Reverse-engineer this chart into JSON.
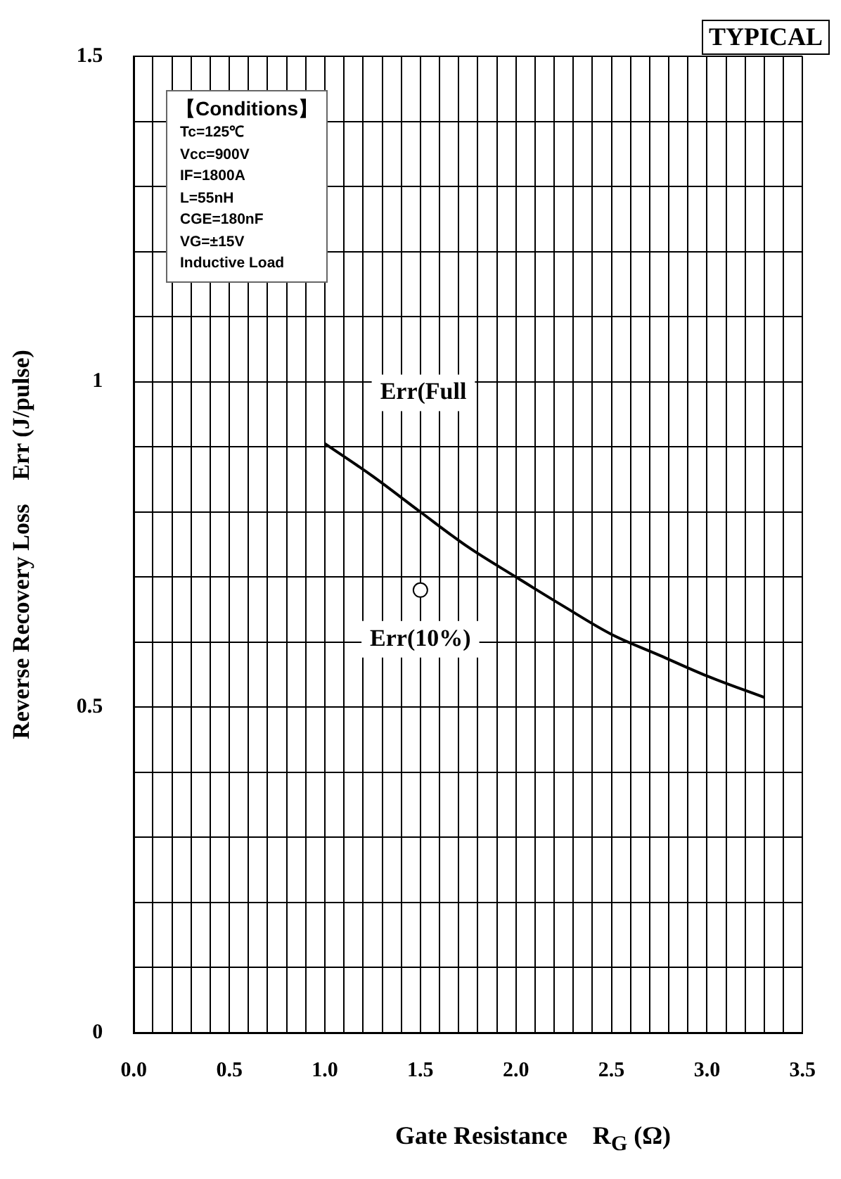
{
  "chart_data": {
    "type": "line",
    "xlabel": "Gate Resistance    R$_{G}$ (Ω)",
    "ylabel": "Reverse Recovery Loss    Err (J/pulse)",
    "annotations": [
      "TYPICAL",
      "【Conditions】",
      "Tc=125℃",
      "Vcc=900V",
      "IF=1800A",
      "L=55nH",
      "CGE=180nF",
      "VG=±15V",
      "Inductive Load"
    ],
    "xlim": [
      0,
      3.5
    ],
    "ylim": [
      0,
      1.5
    ],
    "xticks": [
      {
        "value": 0,
        "label": "0.0"
      },
      {
        "value": 0.1,
        "label": null
      },
      {
        "value": 0.2,
        "label": null
      },
      {
        "value": 0.3,
        "label": null
      },
      {
        "value": 0.4,
        "label": null
      },
      {
        "value": 0.5,
        "label": "0.5"
      },
      {
        "value": 0.6,
        "label": null
      },
      {
        "value": 0.7,
        "label": null
      },
      {
        "value": 0.8,
        "label": null
      },
      {
        "value": 0.9,
        "label": null
      },
      {
        "value": 1,
        "label": "1.0"
      },
      {
        "value": 1.1,
        "label": null
      },
      {
        "value": 1.2,
        "label": null
      },
      {
        "value": 1.3,
        "label": null
      },
      {
        "value": 1.4,
        "label": null
      },
      {
        "value": 1.5,
        "label": "1.5"
      },
      {
        "value": 1.6,
        "label": null
      },
      {
        "value": 1.7,
        "label": null
      },
      {
        "value": 1.8,
        "label": null
      },
      {
        "value": 1.9,
        "label": null
      },
      {
        "value": 2,
        "label": "2.0"
      },
      {
        "value": 2.1,
        "label": null
      },
      {
        "value": 2.2,
        "label": null
      },
      {
        "value": 2.3,
        "label": null
      },
      {
        "value": 2.4,
        "label": null
      },
      {
        "value": 2.5,
        "label": "2.5"
      },
      {
        "value": 2.6,
        "label": null
      },
      {
        "value": 2.7,
        "label": null
      },
      {
        "value": 2.8,
        "label": null
      },
      {
        "value": 2.9,
        "label": null
      },
      {
        "value": 3,
        "label": "3.0"
      },
      {
        "value": 3.1,
        "label": null
      },
      {
        "value": 3.2,
        "label": null
      },
      {
        "value": 3.3,
        "label": null
      },
      {
        "value": 3.4,
        "label": null
      },
      {
        "value": 3.5,
        "label": "3.5"
      }
    ],
    "yticks": [
      0,
      {
        "value": 0.1,
        "label": null
      },
      {
        "value": 0.2,
        "label": null
      },
      {
        "value": 0.3,
        "label": null
      },
      {
        "value": 0.4,
        "label": null
      },
      0.5,
      {
        "value": 0.6,
        "label": null
      },
      {
        "value": 0.7,
        "label": null
      },
      {
        "value": 0.8,
        "label": null
      },
      {
        "value": 0.9,
        "label": null
      },
      1,
      {
        "value": 1.1,
        "label": null
      },
      {
        "value": 1.2,
        "label": null
      },
      {
        "value": 1.3,
        "label": null
      },
      {
        "value": 1.4,
        "label": null
      },
      1.5
    ],
    "grid": true,
    "legend": false,
    "series": [
      {
        "name": "Err(Full",
        "color": "#000000",
        "marker": "none",
        "x": [
          1.0,
          1.25,
          1.5,
          1.75,
          2.0,
          2.25,
          2.5,
          2.75,
          3.0,
          3.3
        ],
        "values": [
          0.905,
          0.855,
          0.8,
          0.746,
          0.7,
          0.655,
          0.612,
          0.58,
          0.548,
          0.515
        ]
      },
      {
        "name": "Err(10%)",
        "type": "scatter",
        "color": "#000000",
        "marker": "circle",
        "x": [
          1.5
        ],
        "values": [
          0.68
        ]
      }
    ]
  }
}
